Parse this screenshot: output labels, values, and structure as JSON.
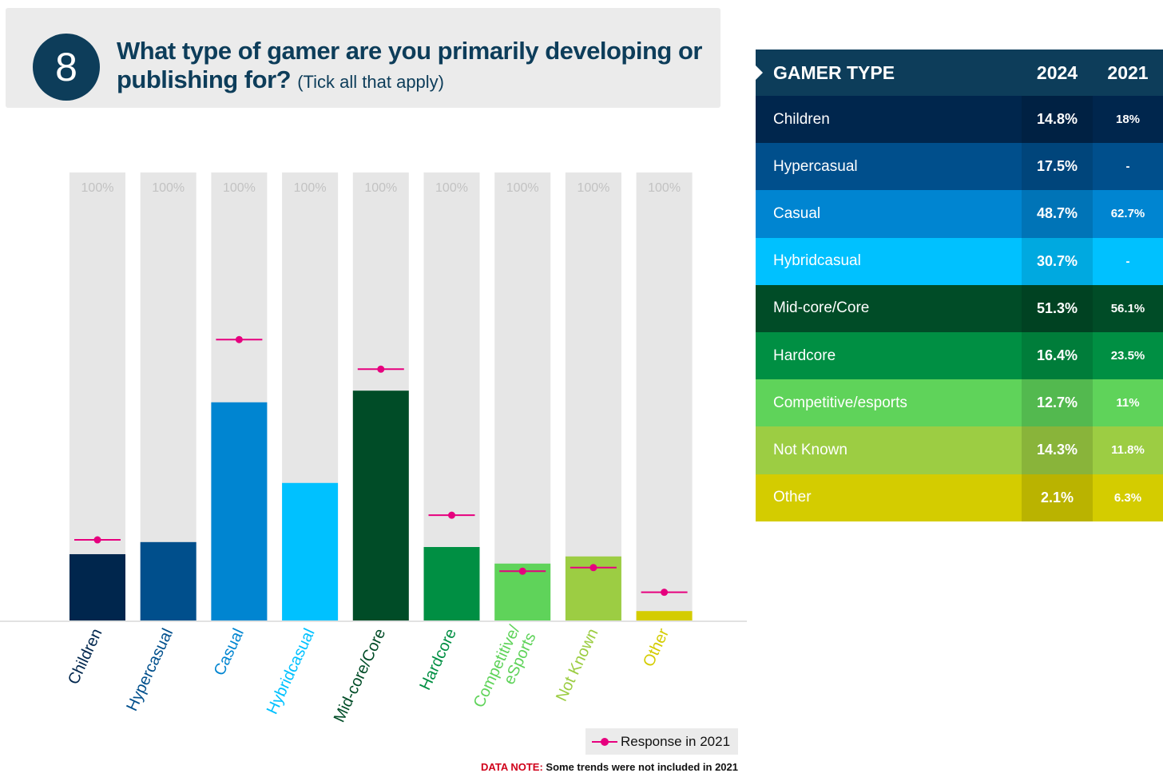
{
  "header": {
    "number": "8",
    "question": "What type of gamer are you primarily developing or publishing for?",
    "question_note": "(Tick all that apply)"
  },
  "chart_data": {
    "type": "bar",
    "categories": [
      "Children",
      "Hypercasual",
      "Casual",
      "Hybridcasual",
      "Mid-core/Core",
      "Hardcore",
      "Competitive/ eSports",
      "Not Known",
      "Other"
    ],
    "series": [
      {
        "values": [
          14.8,
          17.5,
          48.7,
          30.7,
          51.3,
          16.4,
          12.7,
          14.3,
          2.1
        ]
      },
      {
        "name": "Response in 2021",
        "values": [
          18,
          null,
          62.7,
          null,
          56.1,
          23.5,
          11,
          11.8,
          6.3
        ]
      }
    ],
    "background_label": "100%",
    "ylim": [
      0,
      100
    ],
    "colors": [
      "#00264d",
      "#004f8c",
      "#0085d1",
      "#00c1ff",
      "#004c27",
      "#008f43",
      "#5fd35a",
      "#9ccd43",
      "#d4cc00"
    ],
    "marker_color": "#e6007e",
    "label_colors": [
      "#00264d",
      "#004f8c",
      "#0085d1",
      "#00c1ff",
      "#004c27",
      "#008f43",
      "#5fd35a",
      "#9ccd43",
      "#d4cc00"
    ]
  },
  "legend": {
    "label": "Response in 2021"
  },
  "data_note": {
    "head": "DATA NOTE:",
    "text": "Some trends were not included in 2021"
  },
  "table": {
    "headers": [
      "GAMER TYPE",
      "2024",
      "2021"
    ],
    "header_bg": "#0d3d5a",
    "rows": [
      {
        "label": "Children",
        "v2024": "14.8%",
        "v2021": "18%",
        "bg": "#00264d"
      },
      {
        "label": "Hypercasual",
        "v2024": "17.5%",
        "v2021": "-",
        "bg": "#004f8c"
      },
      {
        "label": "Casual",
        "v2024": "48.7%",
        "v2021": "62.7%",
        "bg": "#0085d1"
      },
      {
        "label": "Hybridcasual",
        "v2024": "30.7%",
        "v2021": "-",
        "bg": "#00c1ff"
      },
      {
        "label": "Mid-core/Core",
        "v2024": "51.3%",
        "v2021": "56.1%",
        "bg": "#004c27"
      },
      {
        "label": "Hardcore",
        "v2024": "16.4%",
        "v2021": "23.5%",
        "bg": "#008f43"
      },
      {
        "label": "Competitive/esports",
        "v2024": "12.7%",
        "v2021": "11%",
        "bg": "#5fd35a"
      },
      {
        "label": "Not Known",
        "v2024": "14.3%",
        "v2021": "11.8%",
        "bg": "#9ccd43"
      },
      {
        "label": "Other",
        "v2024": "2.1%",
        "v2021": "6.3%",
        "bg": "#d4cc00"
      }
    ]
  }
}
